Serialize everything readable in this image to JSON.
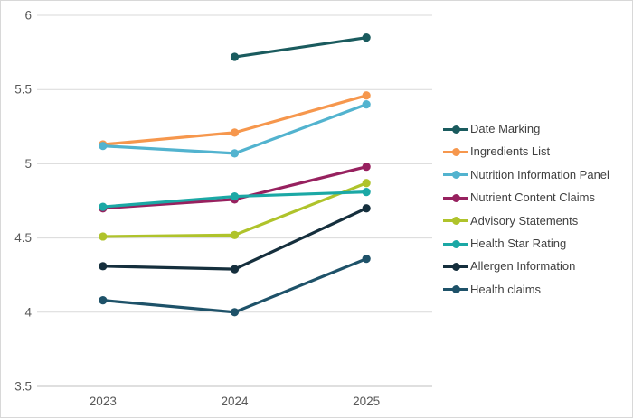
{
  "figure": {
    "background": "#FFFFFF",
    "border_color": "#D8D8D8"
  },
  "chart_data": {
    "type": "line",
    "title": "",
    "x": [
      "2023",
      "2024",
      "2025"
    ],
    "series": [
      {
        "name": "Date Marking",
        "color": "#1A5B5E",
        "values": [
          null,
          5.72,
          5.85
        ]
      },
      {
        "name": "Ingredients List",
        "color": "#F6974D",
        "values": [
          5.13,
          5.21,
          5.46
        ]
      },
      {
        "name": "Nutrition Information Panel",
        "color": "#52B3CF",
        "values": [
          5.12,
          5.07,
          5.4
        ]
      },
      {
        "name": "Nutrient Content Claims",
        "color": "#97215F",
        "values": [
          4.7,
          4.76,
          4.98
        ]
      },
      {
        "name": "Advisory Statements",
        "color": "#AFC32B",
        "values": [
          4.51,
          4.52,
          4.87
        ]
      },
      {
        "name": "Health Star Rating",
        "color": "#1BA8A5",
        "values": [
          4.71,
          4.78,
          4.81
        ]
      },
      {
        "name": "Allergen Information",
        "color": "#152F3D",
        "values": [
          4.31,
          4.29,
          4.7
        ]
      },
      {
        "name": "Health claims",
        "color": "#1E5269",
        "values": [
          4.08,
          4.0,
          4.36
        ]
      }
    ],
    "ylim": [
      3.5,
      6
    ],
    "yticks": [
      6,
      5.5,
      5,
      4.5,
      4,
      3.5
    ],
    "grid": true,
    "legend_position": "right",
    "marker": "circle",
    "xlabel": "",
    "ylabel": ""
  },
  "style": {
    "grid_color": "#D9D9D9",
    "axis_line_color": "#BFBFBF",
    "tick_label_color": "#595959",
    "legend_text_color": "#404040"
  }
}
